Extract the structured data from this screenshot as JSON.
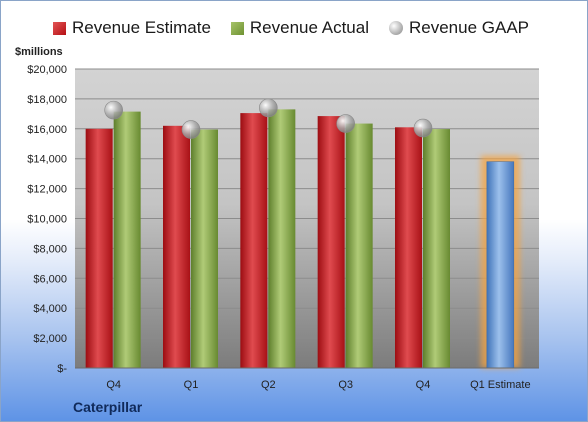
{
  "chart_data": {
    "type": "bar",
    "categories": [
      "Q4",
      "Q1",
      "Q2",
      "Q3",
      "Q4",
      "Q1 Estimate"
    ],
    "series": [
      {
        "name": "Revenue Estimate",
        "color": "#c0171c",
        "values": [
          16000,
          16200,
          17050,
          16850,
          16100,
          null
        ]
      },
      {
        "name": "Revenue Actual",
        "color": "#7f9e3d",
        "values": [
          17150,
          15950,
          17300,
          16350,
          15980,
          null
        ]
      },
      {
        "name": "Revenue GAAP",
        "color": "#b0b0b0",
        "values": [
          17250,
          15950,
          17400,
          16350,
          16050,
          null
        ]
      }
    ],
    "forecast": {
      "category": "Q1 Estimate",
      "value": 13800,
      "color": "#5b8fd0",
      "glow": "#f5a442"
    },
    "ylabel": "$millions",
    "ylim": [
      0,
      20000
    ],
    "yticks": [
      0,
      2000,
      4000,
      6000,
      8000,
      10000,
      12000,
      14000,
      16000,
      18000,
      20000
    ],
    "ytick_labels": [
      "$-",
      "$2,000",
      "$4,000",
      "$6,000",
      "$8,000",
      "$10,000",
      "$12,000",
      "$14,000",
      "$16,000",
      "$18,000",
      "$20,000"
    ],
    "legend_position": "top",
    "grid": true
  },
  "company": "Caterpillar"
}
